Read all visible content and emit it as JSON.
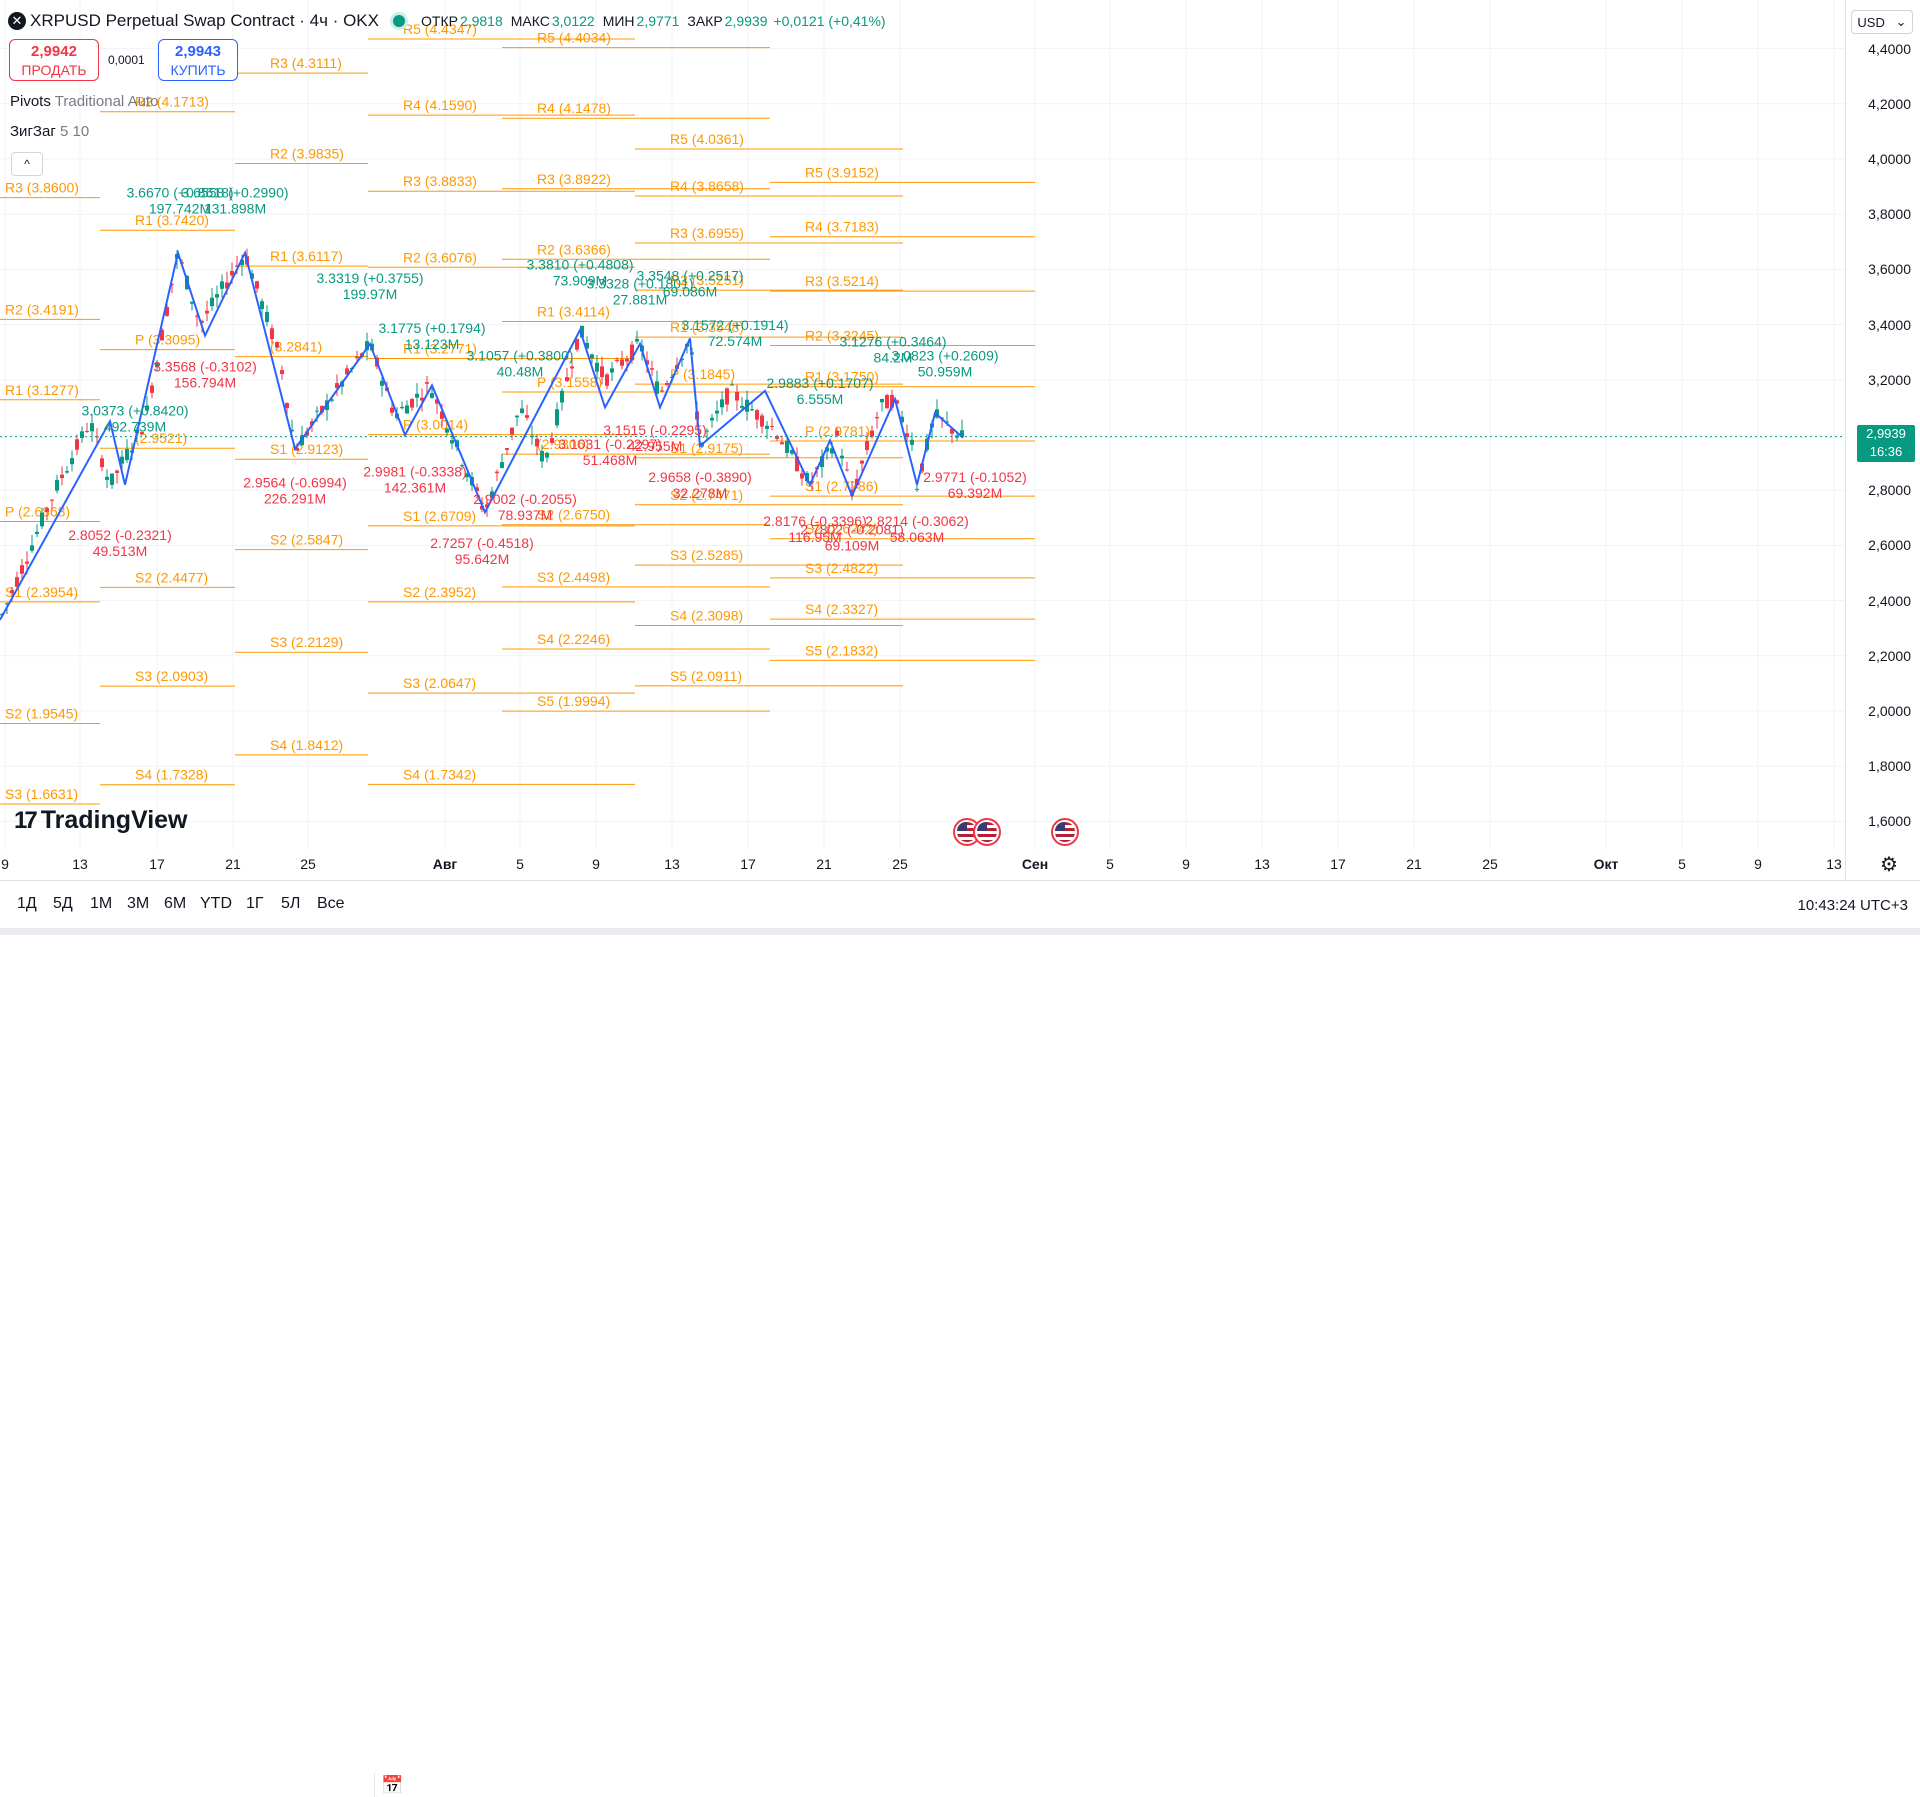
{
  "header": {
    "exchange_icon": "x-logo-icon",
    "symbol": "XRPUSD Perpetual Swap Contract · 4ч · OKX",
    "open_label": "ОТКР",
    "open": "2,9818",
    "high_label": "МАКС",
    "high": "3,0122",
    "low_label": "МИН",
    "low": "2,9771",
    "close_label": "ЗАКР",
    "close": "2,9939",
    "change": "+0,0121 (+0,41%)"
  },
  "trade": {
    "sell_price": "2,9942",
    "sell_label": "ПРОДАТЬ",
    "spread": "0,0001",
    "buy_price": "2,9943",
    "buy_label": "КУПИТЬ"
  },
  "indicators": [
    {
      "name": "Pivots",
      "params": "Traditional Auto"
    },
    {
      "name": "ЗигЗаг",
      "params": "5 10"
    }
  ],
  "currency": "USD",
  "price_axis": {
    "ticks": [
      "4,4000",
      "4,2000",
      "4,0000",
      "3,8000",
      "3,6000",
      "3,4000",
      "3,2000",
      "3,0000",
      "2,8000",
      "2,6000",
      "2,4000",
      "2,2000",
      "2,0000",
      "1,8000",
      "1,6000"
    ],
    "current_price": "2,9939",
    "countdown": "16:36"
  },
  "time_axis": [
    {
      "t": "9",
      "b": false
    },
    {
      "t": "13",
      "b": false
    },
    {
      "t": "17",
      "b": false
    },
    {
      "t": "21",
      "b": false
    },
    {
      "t": "25",
      "b": false
    },
    {
      "t": "Авг",
      "b": true
    },
    {
      "t": "5",
      "b": false
    },
    {
      "t": "9",
      "b": false
    },
    {
      "t": "13",
      "b": false
    },
    {
      "t": "17",
      "b": false
    },
    {
      "t": "21",
      "b": false
    },
    {
      "t": "25",
      "b": false
    },
    {
      "t": "Сен",
      "b": true
    },
    {
      "t": "5",
      "b": false
    },
    {
      "t": "9",
      "b": false
    },
    {
      "t": "13",
      "b": false
    },
    {
      "t": "17",
      "b": false
    },
    {
      "t": "21",
      "b": false
    },
    {
      "t": "25",
      "b": false
    },
    {
      "t": "Окт",
      "b": true
    },
    {
      "t": "5",
      "b": false
    },
    {
      "t": "9",
      "b": false
    },
    {
      "t": "13",
      "b": false
    }
  ],
  "ranges": [
    "1Д",
    "5Д",
    "1М",
    "3М",
    "6М",
    "YTD",
    "1Г",
    "5Л",
    "Все"
  ],
  "clock": "10:43:24 UTC+3",
  "logo": "TradingView",
  "colors": {
    "up": "#089981",
    "down": "#f23645",
    "pivot": "#ff9800",
    "zigzag": "#2962ff"
  },
  "pivots": [
    {
      "label": "R3 (3.8600)",
      "col": 0
    },
    {
      "label": "R2 (3.4191)",
      "col": 0
    },
    {
      "label": "R1 (3.1277)",
      "col": 0
    },
    {
      "label": "P (2.6868)",
      "col": 0
    },
    {
      "label": "S1 (2.3954)",
      "col": 0
    },
    {
      "label": "S2 (1.9545)",
      "col": 0
    },
    {
      "label": "S3 (1.6631)",
      "col": 0
    },
    {
      "label": "R2 (4.1713)",
      "col": 1
    },
    {
      "label": "R1 (3.7420)",
      "col": 1
    },
    {
      "label": "P (3.3095)",
      "col": 1
    },
    {
      "label": "(2.9521)",
      "col": 1
    },
    {
      "label": "S2 (2.4477)",
      "col": 1
    },
    {
      "label": "S3 (2.0903)",
      "col": 1
    },
    {
      "label": "S4 (1.7328)",
      "col": 1
    },
    {
      "label": "R3 (4.3111)",
      "col": 2
    },
    {
      "label": "R2 (3.9835)",
      "col": 2
    },
    {
      "label": "R1 (3.6117)",
      "col": 2
    },
    {
      "label": "(3.2841)",
      "col": 2
    },
    {
      "label": "S1 (2.9123)",
      "col": 2
    },
    {
      "label": "S2 (2.5847)",
      "col": 2
    },
    {
      "label": "S3 (2.2129)",
      "col": 2
    },
    {
      "label": "S4 (1.8412)",
      "col": 2
    },
    {
      "label": "R5 (4.4347)",
      "col": 3
    },
    {
      "label": "R4 (4.1590)",
      "col": 3
    },
    {
      "label": "R3 (3.8833)",
      "col": 3
    },
    {
      "label": "R2 (3.6076)",
      "col": 3
    },
    {
      "label": "R1 (3.2771)",
      "col": 3
    },
    {
      "label": "P (3.0014)",
      "col": 3
    },
    {
      "label": "S1 (2.6709)",
      "col": 3
    },
    {
      "label": "S2 (2.3952)",
      "col": 3
    },
    {
      "label": "S3 (2.0647)",
      "col": 3
    },
    {
      "label": "S4 (1.7342)",
      "col": 3
    },
    {
      "label": "R5 (4.4034)",
      "col": 4
    },
    {
      "label": "R4 (4.1478)",
      "col": 4
    },
    {
      "label": "R3 (3.8922)",
      "col": 4
    },
    {
      "label": "R2 (3.6366)",
      "col": 4
    },
    {
      "label": "R1 (3.4114)",
      "col": 4
    },
    {
      "label": "P (3.1558)",
      "col": 4
    },
    {
      "label": "(2.9306)",
      "col": 4
    },
    {
      "label": "S2 (2.6750)",
      "col": 4
    },
    {
      "label": "S3 (2.4498)",
      "col": 4
    },
    {
      "label": "S4 (2.2246)",
      "col": 4
    },
    {
      "label": "S5 (1.9994)",
      "col": 4
    },
    {
      "label": "R5 (4.0361)",
      "col": 5
    },
    {
      "label": "R4 (3.8658)",
      "col": 5
    },
    {
      "label": "R3 (3.6955)",
      "col": 5
    },
    {
      "label": "R2 (3.5251)",
      "col": 5
    },
    {
      "label": "R1 (3.3548)",
      "col": 5
    },
    {
      "label": "P (3.1845)",
      "col": 5
    },
    {
      "label": "S1 (2.9175)",
      "col": 5
    },
    {
      "label": "S2 (2.7471)",
      "col": 5
    },
    {
      "label": "S3 (2.5285)",
      "col": 5
    },
    {
      "label": "S4 (2.3098)",
      "col": 5
    },
    {
      "label": "S5 (2.0911)",
      "col": 5
    },
    {
      "label": "R5 (3.9152)",
      "col": 6
    },
    {
      "label": "R4 (3.7183)",
      "col": 6
    },
    {
      "label": "R3 (3.5214)",
      "col": 6
    },
    {
      "label": "R2 (3.3245)",
      "col": 6
    },
    {
      "label": "R1 (3.1750)",
      "col": 6
    },
    {
      "label": "P (2.9781)",
      "col": 6
    },
    {
      "label": "S1 (2.7786)",
      "col": 6
    },
    {
      "label": "S2 (2.6242)",
      "col": 6
    },
    {
      "label": "S3 (2.4822)",
      "col": 6
    },
    {
      "label": "S4 (2.3327)",
      "col": 6
    },
    {
      "label": "S5 (2.1832)",
      "col": 6
    }
  ],
  "zigzag_labels": [
    {
      "l1": "3.0373 (+0.8420)",
      "l2": "492.739M",
      "up": true,
      "price": 3.07,
      "bx": 135
    },
    {
      "l1": "3.6670 (+0.8618)",
      "l2": "197.742M",
      "up": true,
      "price": 3.86,
      "bx": 180
    },
    {
      "l1": "3.6558 (+0.2990)",
      "l2": "131.898M",
      "up": true,
      "price": 3.86,
      "bx": 235
    },
    {
      "l1": "2.8052 (-0.2321)",
      "l2": "49.513M",
      "up": false,
      "price": 2.62,
      "bx": 120
    },
    {
      "l1": "3.3568 (-0.3102)",
      "l2": "156.794M",
      "up": false,
      "price": 3.23,
      "bx": 205
    },
    {
      "l1": "2.9564 (-0.6994)",
      "l2": "226.291M",
      "up": false,
      "price": 2.81,
      "bx": 295
    },
    {
      "l1": "3.3319 (+0.3755)",
      "l2": "199.97M",
      "up": true,
      "price": 3.55,
      "bx": 370
    },
    {
      "l1": "2.9981 (-0.3338)",
      "l2": "142.361M",
      "up": false,
      "price": 2.85,
      "bx": 415
    },
    {
      "l1": "3.1775 (+0.1794)",
      "l2": "13.123M",
      "up": true,
      "price": 3.37,
      "bx": 432
    },
    {
      "l1": "3.1057 (+0.3800)",
      "l2": "40.48M",
      "up": true,
      "price": 3.27,
      "bx": 520
    },
    {
      "l1": "2.9002 (-0.2055)",
      "l2": "78.937M",
      "up": false,
      "price": 2.75,
      "bx": 525
    },
    {
      "l1": "2.7257 (-0.4518)",
      "l2": "95.642M",
      "up": false,
      "price": 2.59,
      "bx": 482
    },
    {
      "l1": "3.3810 (+0.4808)",
      "l2": "73.909M",
      "up": true,
      "price": 3.6,
      "bx": 580
    },
    {
      "l1": "3.3328 (+0.1801)",
      "l2": "27.881M",
      "up": true,
      "price": 3.53,
      "bx": 640
    },
    {
      "l1": "3.3548 (+0.2517)",
      "l2": "69.086M",
      "up": true,
      "price": 3.56,
      "bx": 690
    },
    {
      "l1": "3.1515 (-0.2295)",
      "l2": "42.955M",
      "up": false,
      "price": 3.0,
      "bx": 655
    },
    {
      "l1": "3.1031 (-0.2297)",
      "l2": "51.468M",
      "up": false,
      "price": 2.95,
      "bx": 610
    },
    {
      "l1": "3.1572 (+0.1914)",
      "l2": "72.574M",
      "up": true,
      "price": 3.38,
      "bx": 735
    },
    {
      "l1": "2.9658 (-0.3890)",
      "l2": "32.278M",
      "up": false,
      "price": 2.83,
      "bx": 700
    },
    {
      "l1": "2.9883 (+0.1707)",
      "l2": "6.555M",
      "up": true,
      "price": 3.17,
      "bx": 820
    },
    {
      "l1": "2.8176 (-0.3396)",
      "l2": "116.95M",
      "up": false,
      "price": 2.67,
      "bx": 815
    },
    {
      "l1": "2.7802 (-0.2081)",
      "l2": "69.109M",
      "up": false,
      "price": 2.64,
      "bx": 852
    },
    {
      "l1": "2.8214 (-0.3062)",
      "l2": "58.063M",
      "up": false,
      "price": 2.67,
      "bx": 917
    },
    {
      "l1": "3.1276 (+0.3464)",
      "l2": "84.2M",
      "up": true,
      "price": 3.32,
      "bx": 893
    },
    {
      "l1": "3.0823 (+0.2609)",
      "l2": "50.959M",
      "up": true,
      "price": 3.27,
      "bx": 945
    },
    {
      "l1": "2.9771 (-0.1052)",
      "l2": "69.392M",
      "up": false,
      "price": 2.83,
      "bx": 975
    }
  ]
}
